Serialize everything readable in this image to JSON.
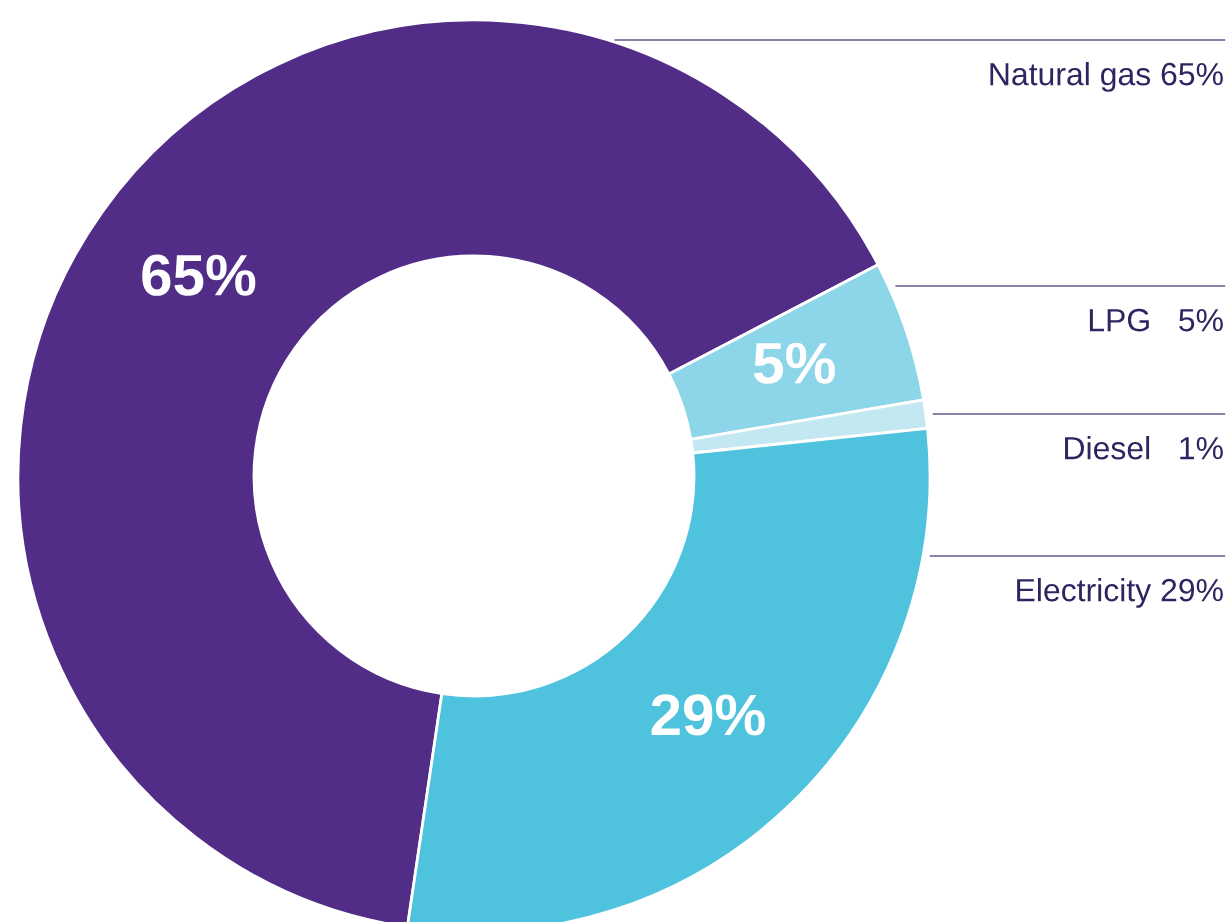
{
  "chart_data": {
    "type": "donut",
    "categories": [
      "Natural gas 65%",
      "LPG   5%",
      "Diesel   1%",
      "Electricity 29%"
    ],
    "values": [
      65,
      5,
      1,
      29
    ],
    "colors": [
      "#522d88",
      "#8dd5e8",
      "#c4e8f2",
      "#4fc3de"
    ],
    "value_labels": [
      "65%",
      "5%",
      null,
      "29%"
    ]
  }
}
